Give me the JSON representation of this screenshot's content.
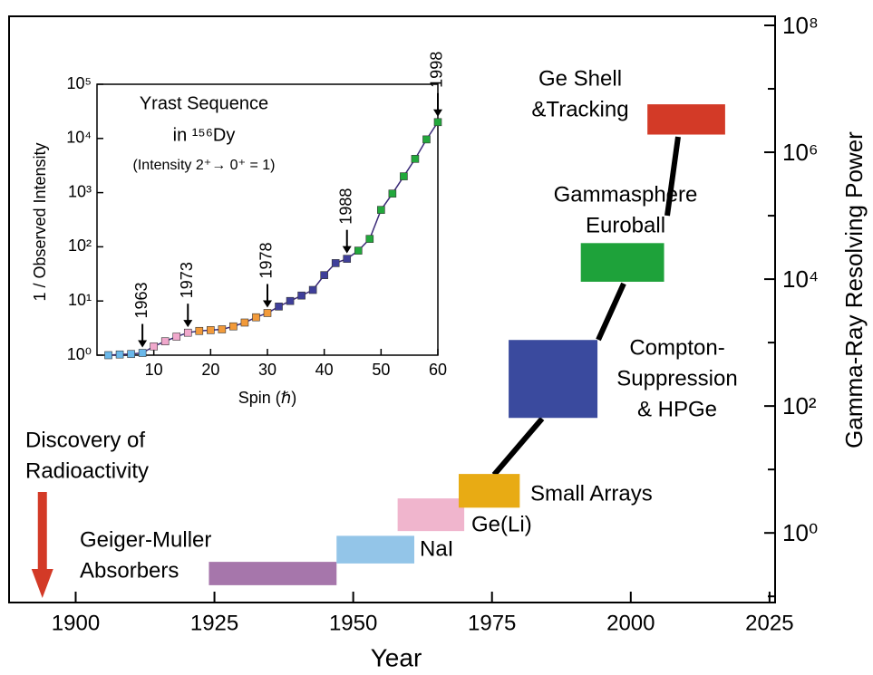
{
  "chart_data": [
    {
      "type": "timeline",
      "xlabel": "Year",
      "ylabel": "Gamma-Ray Resolving Power",
      "xlim": [
        1888,
        2026
      ],
      "xticks": [
        1900,
        1925,
        1950,
        1975,
        2000,
        2025
      ],
      "ylim": [
        0.08,
        100000000
      ],
      "log_y": true,
      "y_axis_side": "right",
      "yticks": [
        {
          "value": 1,
          "label": "10⁰"
        },
        {
          "value": 100,
          "label": "10²"
        },
        {
          "value": 10000,
          "label": "10⁴"
        },
        {
          "value": 1000000,
          "label": "10⁶"
        },
        {
          "value": 100000000,
          "label": "10⁸"
        }
      ],
      "yminorticks": [
        0.1,
        10,
        1000,
        100000,
        10000000
      ],
      "series": [
        {
          "label_lines": [
            "Geiger-Muller",
            "Absorbers"
          ],
          "color": "#a676ab",
          "x": [
            1924,
            1947
          ],
          "values": [
            0.15,
            0.35
          ]
        },
        {
          "label_lines": [
            "NaI"
          ],
          "color": "#93c5e8",
          "x": [
            1947,
            1961
          ],
          "values": [
            0.33,
            0.9
          ]
        },
        {
          "label_lines": [
            "Ge(Li)"
          ],
          "color": "#f0b5cd",
          "x": [
            1958,
            1970
          ],
          "values": [
            1.07,
            3.5
          ]
        },
        {
          "label_lines": [
            "Small Arrays"
          ],
          "color": "#e8ab14",
          "x": [
            1969,
            1980
          ],
          "values": [
            2.5,
            8.5
          ]
        },
        {
          "label_lines": [
            "Compton-",
            "Suppression",
            "& HPGe"
          ],
          "color": "#3a4a9e",
          "x": [
            1978,
            1994
          ],
          "values": [
            65,
            1100
          ]
        },
        {
          "label_lines": [
            "Gammasphere",
            "Euroball"
          ],
          "color": "#1ea23a",
          "x": [
            1991,
            2006
          ],
          "values": [
            9100,
            37000
          ]
        },
        {
          "label_lines": [
            "Ge Shell",
            "&Tracking"
          ],
          "color": "#d33a27",
          "x": [
            2003,
            2017
          ],
          "values": [
            1900000,
            5700000
          ]
        }
      ],
      "annotations": [
        {
          "text_lines": [
            "Discovery of",
            "Radioactivity"
          ],
          "x": 1894,
          "color": "#d33a27"
        }
      ]
    },
    {
      "type": "line",
      "title_lines": [
        "Yrast Sequence",
        "in ¹⁵⁶Dy",
        "(Intensity 2⁺→ 0⁺ = 1)"
      ],
      "xlabel": "Spin (ℏ)",
      "ylabel": "1 / Observed Intensity",
      "xlim": [
        0,
        60
      ],
      "xticks": [
        10,
        20,
        30,
        40,
        50,
        60
      ],
      "ylim": [
        1,
        100000
      ],
      "log_y": true,
      "yticks": [
        {
          "value": 1,
          "label": "10⁰"
        },
        {
          "value": 10,
          "label": "10¹"
        },
        {
          "value": 100,
          "label": "10²"
        },
        {
          "value": 1000,
          "label": "10³"
        },
        {
          "value": 10000,
          "label": "10⁴"
        },
        {
          "value": 100000,
          "label": "10⁵"
        }
      ],
      "line_color": "#3b2a78",
      "series": [
        {
          "color": "#6ab8ea",
          "x": [
            2,
            4,
            6,
            8
          ],
          "values": [
            1.0,
            1.03,
            1.05,
            1.1
          ]
        },
        {
          "color": "#f0a8cc",
          "x": [
            10,
            12,
            14,
            16
          ],
          "values": [
            1.45,
            1.8,
            2.2,
            2.6
          ]
        },
        {
          "color": "#f29a3a",
          "x": [
            18,
            20,
            22,
            24,
            26,
            28,
            30
          ],
          "values": [
            2.8,
            2.9,
            3.0,
            3.4,
            4.0,
            5.0,
            6.0
          ]
        },
        {
          "color": "#3f3f9a",
          "x": [
            32,
            34,
            36,
            38,
            40,
            42,
            44
          ],
          "values": [
            7.9,
            10,
            12.6,
            16,
            30,
            50,
            60
          ]
        },
        {
          "color": "#22a83c",
          "x": [
            46,
            48,
            50,
            52,
            54,
            56,
            58,
            60
          ],
          "values": [
            85,
            140,
            480,
            960,
            2000,
            4200,
            9600,
            20000
          ]
        }
      ],
      "annotations": [
        {
          "text": "1963",
          "x": 8
        },
        {
          "text": "1973",
          "x": 16
        },
        {
          "text": "1978",
          "x": 30
        },
        {
          "text": "1988",
          "x": 44
        },
        {
          "text": "1998",
          "x": 60
        }
      ]
    }
  ]
}
